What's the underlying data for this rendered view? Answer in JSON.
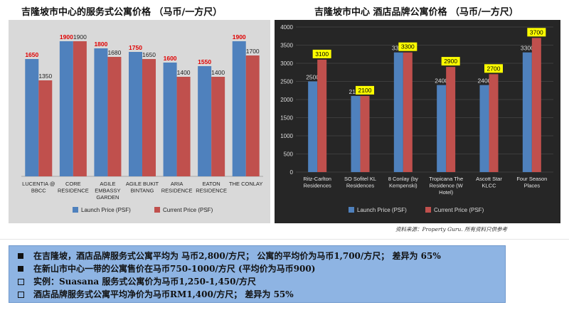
{
  "titles": {
    "left": "吉隆坡市中心的服务式公寓价格 （马币/一方尺）",
    "right": "吉隆坡市中心 酒店品牌公寓价格 （马币/一方尺）"
  },
  "source_note": "资料来源：Property Guru. 所有资料只供参考",
  "summary": {
    "lines": [
      {
        "bullet": "square",
        "text": "在吉隆坡，酒店品牌服务式公寓平均为 马币2,800/方尺；  公寓的平均价为马币1,700/方尺；  差异为 65%"
      },
      {
        "bullet": "square",
        "text": "在新山市中心一带的公寓售价在马币750-1000/方尺 (平均价为马币900)"
      },
      {
        "bullet": "box",
        "text": "   实例：Suasana 服务式公寓价为马币1,250-1,450/方尺"
      },
      {
        "bullet": "box",
        "text": "   酒店品牌服务式公寓平均净价为马币RM1,400/方尺；  差异为 55%"
      }
    ]
  },
  "colors": {
    "launch": "#4f81bd",
    "current": "#c0504d",
    "left_bg": "#d9d9d9",
    "right_bg": "#262626",
    "summary_bg": "#8eb4e3",
    "highlight": "#ffff00"
  },
  "chart_data": [
    {
      "type": "bar",
      "title": "吉隆坡市中心的服务式公寓价格 （马币/一方尺）",
      "categories": [
        "LUCENTIA @ BBCC",
        "CORE RESIDENCE",
        "AGILE EMBASSY GARDEN",
        "AGILE BUKIT BINTANG",
        "ARIA RESIDENCE",
        "EATON RESIDENCE",
        "THE CONLAY"
      ],
      "series": [
        {
          "name": "Launch Price (PSF)",
          "values": [
            1650,
            1900,
            1800,
            1750,
            1600,
            1550,
            1900
          ]
        },
        {
          "name": "Current Price (PSF)",
          "values": [
            1350,
            1900,
            1680,
            1650,
            1400,
            1400,
            1700
          ]
        }
      ],
      "ylim": [
        0,
        2000
      ],
      "legend": "bottom",
      "grid": false
    },
    {
      "type": "bar",
      "title": "吉隆坡市中心 酒店品牌公寓价格 （马币/一方尺）",
      "categories": [
        "Ritz-Carlton Residences",
        "SO Sofitel KL Residences",
        "8 Conlay (by Kempenski)",
        "Tropicana The Residence (W Hotel)",
        "Ascott Star KLCC",
        "Four Season Places"
      ],
      "series": [
        {
          "name": "Launch Price (PSF)",
          "values": [
            2500,
            2100,
            3300,
            2400,
            2400,
            3300
          ]
        },
        {
          "name": "Current Price (PSF)",
          "values": [
            3100,
            2100,
            3300,
            2900,
            2700,
            3700
          ]
        }
      ],
      "yticks": [
        0,
        500,
        1000,
        1500,
        2000,
        2500,
        3000,
        3500,
        4000
      ],
      "ylim": [
        0,
        4000
      ],
      "legend": "bottom",
      "grid": true
    }
  ]
}
